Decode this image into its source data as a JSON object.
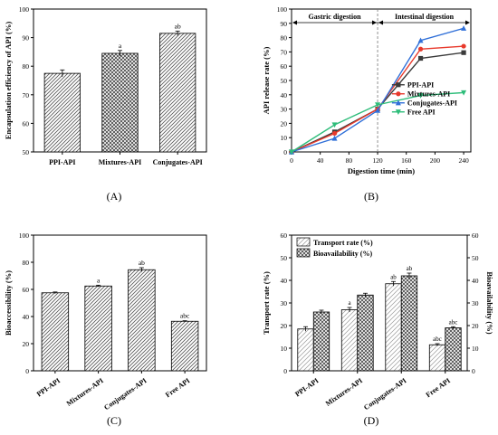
{
  "chart_data": [
    {
      "id": "A",
      "type": "bar",
      "panel_label": "(A)",
      "title": "",
      "xlabel": "",
      "ylabel": "Encapsulation efficiency of API (%)",
      "categories": [
        "PPI-API",
        "Mixtures-API",
        "Conjugates-API"
      ],
      "values": [
        77.5,
        84.5,
        91.5
      ],
      "errors": [
        1.2,
        1.0,
        0.8
      ],
      "sig_labels": [
        "",
        "a",
        "ab"
      ],
      "hatch": [
        "diag",
        "cross",
        "diag"
      ],
      "ylim": [
        50,
        100
      ],
      "yticks": [
        50,
        60,
        70,
        80,
        90,
        100
      ],
      "xtick_rotate": false
    },
    {
      "id": "B",
      "type": "line",
      "panel_label": "(B)",
      "title": "",
      "xlabel": "Digestion time (min)",
      "ylabel": "API release rate (%)",
      "xlim": [
        0,
        250
      ],
      "ylim": [
        0,
        100
      ],
      "xticks": [
        0,
        40,
        80,
        120,
        160,
        200,
        240
      ],
      "yticks": [
        0,
        10,
        20,
        30,
        40,
        50,
        60,
        70,
        80,
        90,
        100
      ],
      "x": [
        0,
        60,
        120,
        180,
        240
      ],
      "phase_divider_x": 120,
      "phase_labels": [
        "Gastric digestion",
        "Intestinal digestion"
      ],
      "legend_position": "center-right",
      "series": [
        {
          "name": "PPI-API",
          "color": "#3a3a3a",
          "marker": "square",
          "values": [
            0,
            14,
            30,
            65.5,
            69.5
          ]
        },
        {
          "name": "Mixtures-API",
          "color": "#e8392b",
          "marker": "circle",
          "values": [
            0,
            13,
            30,
            72,
            74
          ]
        },
        {
          "name": "Conjugates-API",
          "color": "#2f6fd8",
          "marker": "triangle-up",
          "values": [
            0,
            9.5,
            29,
            78,
            86.5
          ]
        },
        {
          "name": "Free API",
          "color": "#2ebd7a",
          "marker": "triangle-down",
          "values": [
            0,
            19,
            33,
            39.5,
            41.5
          ]
        }
      ]
    },
    {
      "id": "C",
      "type": "bar",
      "panel_label": "(C)",
      "title": "",
      "xlabel": "",
      "ylabel": "Bioaccessibility (%)",
      "categories": [
        "PPI-API",
        "Mixtures-API",
        "Conjugates-API",
        "Free API"
      ],
      "values": [
        57.5,
        62.5,
        74.5,
        36.5
      ],
      "errors": [
        0.6,
        0.6,
        1.5,
        0.4
      ],
      "sig_labels": [
        "",
        "a",
        "ab",
        "abc"
      ],
      "hatch": [
        "diag",
        "diag",
        "diag",
        "diag"
      ],
      "ylim": [
        0,
        100
      ],
      "yticks": [
        0,
        20,
        40,
        60,
        80,
        100
      ],
      "xtick_rotate": true
    },
    {
      "id": "D",
      "type": "bar",
      "panel_label": "(D)",
      "title": "",
      "xlabel": "",
      "ylabel": "Transport rate (%)",
      "ylabel_right": "Bioavailability (%)",
      "categories": [
        "PPI-API",
        "Mixtures-API",
        "Conjugates-API",
        "Free API"
      ],
      "ylim": [
        0,
        60
      ],
      "yticks": [
        0,
        10,
        20,
        30,
        40,
        50,
        60
      ],
      "legend_position": "top-left",
      "xtick_rotate": true,
      "series": [
        {
          "name": "Transport rate (%)",
          "hatch": "light",
          "values": [
            18.5,
            27,
            38.5,
            11.5
          ],
          "errors": [
            1.0,
            1.0,
            1.0,
            0.5
          ],
          "sig_labels": [
            "",
            "a",
            "ab",
            "abc"
          ]
        },
        {
          "name": "Bioavailability (%)",
          "hatch": "cross",
          "values": [
            26,
            33.5,
            42,
            19
          ],
          "errors": [
            0.8,
            0.8,
            1.2,
            0.5
          ],
          "sig_labels": [
            "",
            "",
            "ab",
            "abc"
          ]
        }
      ]
    }
  ]
}
